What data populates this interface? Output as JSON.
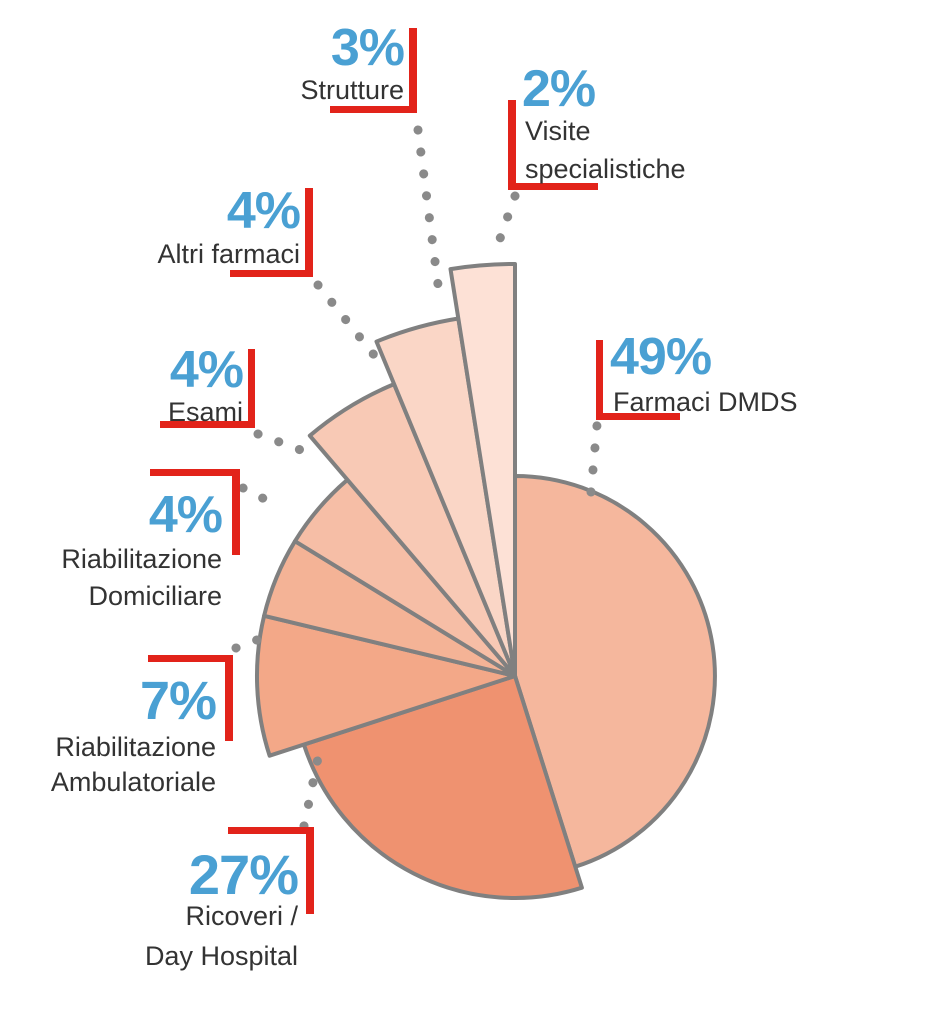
{
  "chart_data": {
    "type": "pie",
    "title": "",
    "slices": [
      {
        "label": "Farmaci DMDS",
        "percent_label": "49%",
        "value": 49,
        "color": "#f5b79d"
      },
      {
        "label": "Ricoveri / Day Hospital",
        "label_lines": [
          "Ricoveri /",
          "Day Hospital"
        ],
        "percent_label": "27%",
        "value": 27,
        "color": "#ef9270"
      },
      {
        "label": "Riabilitazione Ambulatoriale",
        "label_lines": [
          "Riabilitazione",
          "Ambulatoriale"
        ],
        "percent_label": "7%",
        "value": 7,
        "color": "#f3a888"
      },
      {
        "label": "Riabilitazione Domiciliare",
        "label_lines": [
          "Riabilitazione",
          "Domiciliare"
        ],
        "percent_label": "4%",
        "value": 4,
        "color": "#f4b396"
      },
      {
        "label": "Esami",
        "percent_label": "4%",
        "value": 4,
        "color": "#f6bea6"
      },
      {
        "label": "Altri farmaci",
        "percent_label": "4%",
        "value": 4,
        "color": "#f8c9b5"
      },
      {
        "label": "Strutture",
        "percent_label": "3%",
        "value": 3,
        "color": "#fad6c6"
      },
      {
        "label": "Visite specialistiche",
        "label_lines": [
          "Visite",
          "specialistiche"
        ],
        "percent_label": "2%",
        "value": 2,
        "color": "#fde1d6"
      }
    ],
    "accent_colors": {
      "percent_text": "#4aa0d3",
      "marker_bar": "#e2231a",
      "leader_dots": "#8a8a8a",
      "slice_outline": "#808080"
    }
  }
}
